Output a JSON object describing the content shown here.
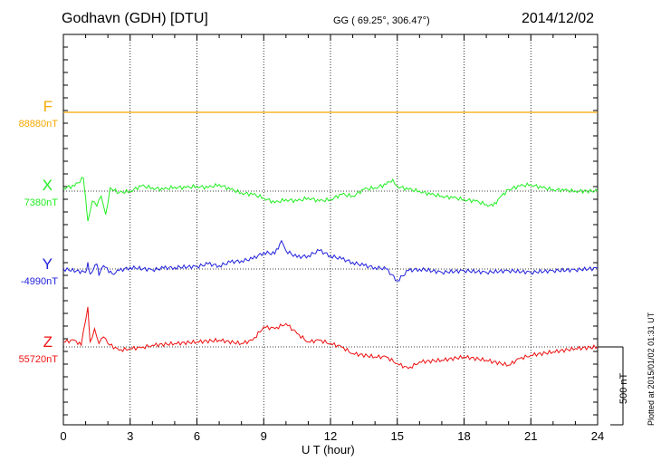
{
  "header": {
    "station": "Godhavn (GDH)  [DTU]",
    "coords": "GG ( 69.25°, 306.47°)",
    "date": "2014/12/02"
  },
  "plotted": "Plotted at 2015/01/02 01:31  UT",
  "scale_label": "500 nT",
  "chart_data": {
    "type": "line",
    "xlabel": "U T (hour)",
    "xlim": [
      0,
      24
    ],
    "xticks": [
      "0",
      "3",
      "6",
      "9",
      "12",
      "15",
      "18",
      "21",
      "24"
    ],
    "nt_per_pixel": 5.435,
    "grid": true,
    "series": [
      {
        "name": "F",
        "baseline_label": "88880nT",
        "color": "#f5a800",
        "points": [
          [
            0,
            0
          ],
          [
            24,
            0
          ]
        ]
      },
      {
        "name": "X",
        "baseline_label": "7380nT",
        "color": "#22ee22",
        "points": [
          [
            0,
            20
          ],
          [
            0.5,
            30
          ],
          [
            0.9,
            80
          ],
          [
            1.0,
            -40
          ],
          [
            1.1,
            -180
          ],
          [
            1.3,
            -60
          ],
          [
            1.5,
            -90
          ],
          [
            1.7,
            -30
          ],
          [
            1.9,
            -140
          ],
          [
            2.1,
            20
          ],
          [
            2.5,
            -10
          ],
          [
            3,
            0
          ],
          [
            3.5,
            30
          ],
          [
            4,
            20
          ],
          [
            4.5,
            10
          ],
          [
            5,
            25
          ],
          [
            5.5,
            20
          ],
          [
            6,
            30
          ],
          [
            6.5,
            20
          ],
          [
            7,
            40
          ],
          [
            7.5,
            10
          ],
          [
            8,
            -10
          ],
          [
            8.5,
            -20
          ],
          [
            9,
            -40
          ],
          [
            9.5,
            -70
          ],
          [
            10,
            -50
          ],
          [
            10.5,
            -60
          ],
          [
            11,
            -40
          ],
          [
            11.5,
            -60
          ],
          [
            12,
            -50
          ],
          [
            12.5,
            -20
          ],
          [
            13,
            -30
          ],
          [
            13.5,
            10
          ],
          [
            14,
            20
          ],
          [
            14.5,
            40
          ],
          [
            14.8,
            70
          ],
          [
            15,
            30
          ],
          [
            15.5,
            10
          ],
          [
            16,
            0
          ],
          [
            16.5,
            -20
          ],
          [
            17,
            -30
          ],
          [
            17.5,
            -40
          ],
          [
            18,
            -50
          ],
          [
            18.5,
            -60
          ],
          [
            19,
            -80
          ],
          [
            19.3,
            -90
          ],
          [
            19.6,
            -40
          ],
          [
            20,
            10
          ],
          [
            20.5,
            30
          ],
          [
            21,
            40
          ],
          [
            21.5,
            20
          ],
          [
            22,
            10
          ],
          [
            22.5,
            5
          ],
          [
            23,
            0
          ],
          [
            24,
            0
          ]
        ]
      },
      {
        "name": "Y",
        "baseline_label": "-4990nT",
        "color": "#2020dd",
        "points": [
          [
            0,
            0
          ],
          [
            1.0,
            -20
          ],
          [
            1.1,
            40
          ],
          [
            1.2,
            -30
          ],
          [
            1.5,
            30
          ],
          [
            1.6,
            -40
          ],
          [
            1.8,
            20
          ],
          [
            2.2,
            -30
          ],
          [
            2.5,
            -10
          ],
          [
            3,
            10
          ],
          [
            4,
            -5
          ],
          [
            4.5,
            5
          ],
          [
            5,
            10
          ],
          [
            6,
            15
          ],
          [
            6.5,
            30
          ],
          [
            7,
            20
          ],
          [
            7.5,
            40
          ],
          [
            8,
            50
          ],
          [
            8.5,
            60
          ],
          [
            9,
            100
          ],
          [
            9.5,
            90
          ],
          [
            9.8,
            170
          ],
          [
            10,
            110
          ],
          [
            10.5,
            70
          ],
          [
            11,
            80
          ],
          [
            11.5,
            110
          ],
          [
            12,
            80
          ],
          [
            12.5,
            60
          ],
          [
            13,
            40
          ],
          [
            13.5,
            20
          ],
          [
            14,
            10
          ],
          [
            14.5,
            0
          ],
          [
            15,
            -70
          ],
          [
            15.5,
            -10
          ],
          [
            16,
            0
          ],
          [
            17,
            -20
          ],
          [
            18,
            -10
          ],
          [
            19,
            -20
          ],
          [
            20,
            -10
          ],
          [
            21,
            -20
          ],
          [
            22,
            -10
          ],
          [
            23,
            -5
          ],
          [
            24,
            5
          ]
        ]
      },
      {
        "name": "Z",
        "baseline_label": "55720nT",
        "color": "#ee1111",
        "points": [
          [
            0,
            30
          ],
          [
            0.5,
            40
          ],
          [
            0.8,
            10
          ],
          [
            1.0,
            160
          ],
          [
            1.1,
            240
          ],
          [
            1.2,
            30
          ],
          [
            1.4,
            110
          ],
          [
            1.6,
            20
          ],
          [
            1.8,
            60
          ],
          [
            2,
            20
          ],
          [
            2.5,
            -20
          ],
          [
            3,
            -10
          ],
          [
            3.5,
            -5
          ],
          [
            4,
            10
          ],
          [
            5,
            20
          ],
          [
            6,
            30
          ],
          [
            7,
            40
          ],
          [
            8,
            20
          ],
          [
            8.5,
            40
          ],
          [
            9,
            120
          ],
          [
            9.5,
            110
          ],
          [
            10,
            140
          ],
          [
            10.5,
            80
          ],
          [
            11,
            30
          ],
          [
            11.5,
            40
          ],
          [
            12,
            20
          ],
          [
            12.5,
            0
          ],
          [
            13,
            -40
          ],
          [
            14,
            -60
          ],
          [
            14.5,
            -60
          ],
          [
            15,
            -100
          ],
          [
            15.5,
            -130
          ],
          [
            16,
            -90
          ],
          [
            17,
            -80
          ],
          [
            18,
            -60
          ],
          [
            19,
            -80
          ],
          [
            20,
            -110
          ],
          [
            20.5,
            -70
          ],
          [
            21,
            -50
          ],
          [
            22,
            -30
          ],
          [
            23,
            -10
          ],
          [
            24,
            0
          ]
        ]
      }
    ]
  }
}
